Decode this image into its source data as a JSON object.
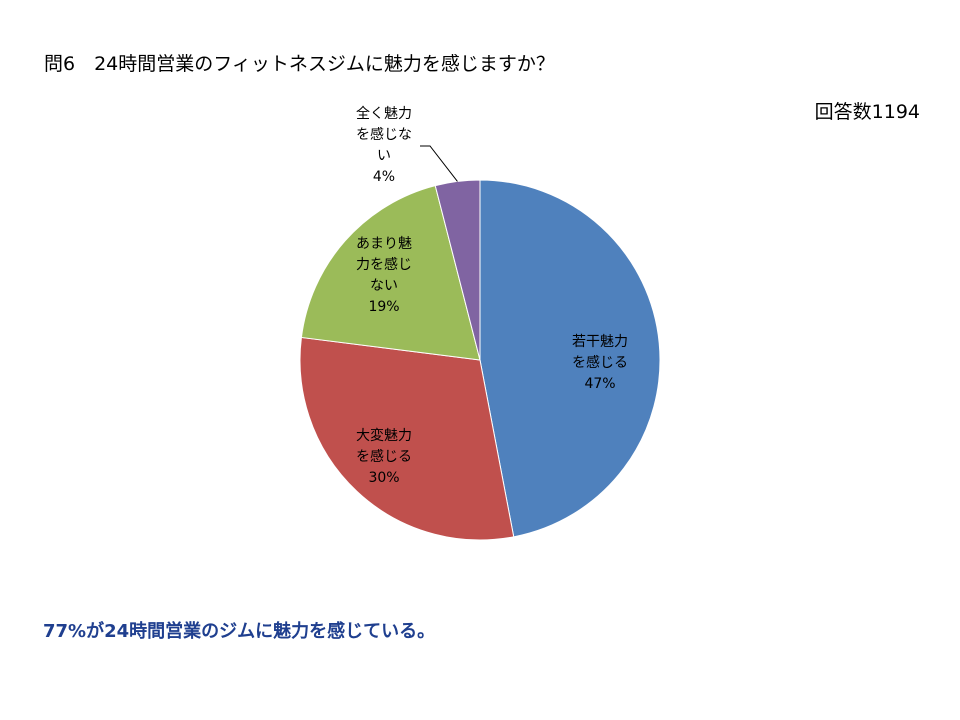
{
  "page": {
    "title": "問6　24時間営業のフィットネスジムに魅力を感じますか？",
    "respondents": "回答数1194",
    "conclusion": "77%が24時間営業のジムに魅力を感じている。"
  },
  "colors": {
    "conclusion_text": "#1f3f8f",
    "slice_border": "#ffffff",
    "leader_line": "#000000"
  },
  "chart_data": {
    "type": "pie",
    "title": "",
    "start_angle_deg": 0,
    "direction": "clockwise",
    "slices": [
      {
        "label_lines": [
          "若干魅力",
          "を感じる"
        ],
        "percent_label": "47%",
        "value": 47,
        "color": "#4f81bd"
      },
      {
        "label_lines": [
          "大変魅力",
          "を感じる"
        ],
        "percent_label": "30%",
        "value": 30,
        "color": "#c0504d"
      },
      {
        "label_lines": [
          "あまり魅",
          "力を感じ",
          "ない"
        ],
        "percent_label": "19%",
        "value": 19,
        "color": "#9bbb59"
      },
      {
        "label_lines": [
          "全く魅力",
          "を感じな",
          "い"
        ],
        "percent_label": "4%",
        "value": 4,
        "color": "#8064a2"
      }
    ]
  }
}
